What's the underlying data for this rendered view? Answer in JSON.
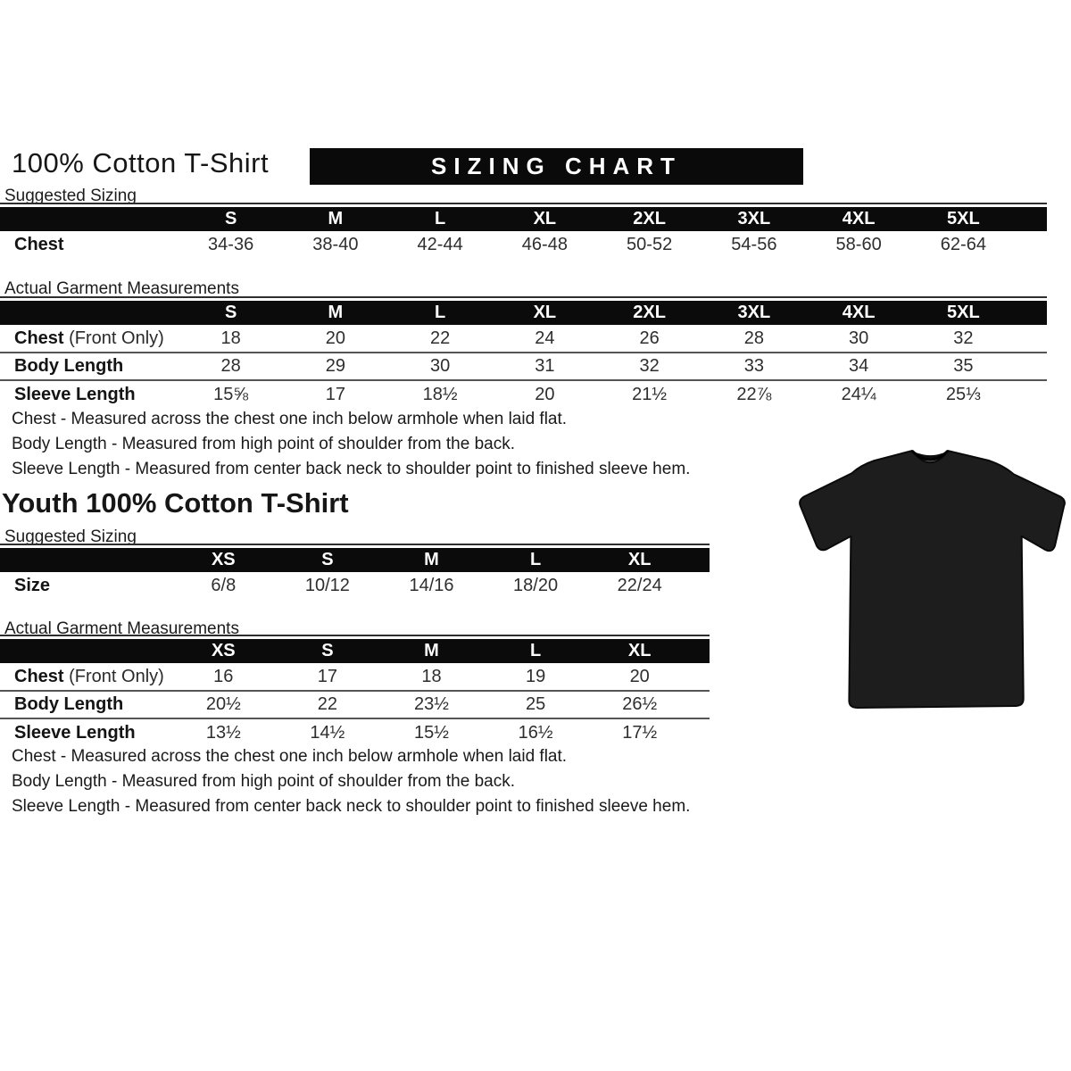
{
  "banner": "SIZING CHART",
  "adult": {
    "title": "100% Cotton T-Shirt",
    "suggested_label": "Suggested Sizing",
    "actual_label": "Actual Garment Measurements",
    "suggested_table": {
      "label_width": 200,
      "spacer": 35,
      "sizes": [
        "S",
        "M",
        "L",
        "XL",
        "2XL",
        "3XL",
        "4XL",
        "5XL"
      ],
      "rows": [
        {
          "label": "Chest",
          "label_suffix": "",
          "values": [
            "34-36",
            "38-40",
            "42-44",
            "46-48",
            "50-52",
            "54-56",
            "58-60",
            "62-64"
          ]
        }
      ]
    },
    "actual_table": {
      "label_width": 200,
      "spacer": 35,
      "sizes": [
        "S",
        "M",
        "L",
        "XL",
        "2XL",
        "3XL",
        "4XL",
        "5XL"
      ],
      "rows": [
        {
          "label": "Chest",
          "label_suffix": "(Front Only)",
          "values": [
            "18",
            "20",
            "22",
            "24",
            "26",
            "28",
            "30",
            "32"
          ]
        },
        {
          "label": "Body Length",
          "label_suffix": "",
          "values": [
            "28",
            "29",
            "30",
            "31",
            "32",
            "33",
            "34",
            "35"
          ]
        },
        {
          "label": "Sleeve Length",
          "label_suffix": "",
          "values": [
            "15⅝",
            "17",
            "18½",
            "20",
            "21½",
            "22⅞",
            "24¼",
            "25⅓"
          ]
        }
      ]
    },
    "notes": [
      "Chest - Measured across the chest one inch below armhole when laid flat.",
      "Body Length - Measured from high point of shoulder from the back.",
      "Sleeve Length - Measured from center back neck to shoulder point to finished sleeve hem."
    ]
  },
  "youth": {
    "title": "Youth 100% Cotton T-Shirt",
    "suggested_label": "Suggested Sizing",
    "actual_label": "Actual Garment Measurements",
    "suggested_table": {
      "label_width": 192,
      "spacer": 20,
      "sizes": [
        "XS",
        "S",
        "M",
        "L",
        "XL"
      ],
      "rows": [
        {
          "label": "Size",
          "label_suffix": "",
          "values": [
            "6/8",
            "10/12",
            "14/16",
            "18/20",
            "22/24"
          ]
        }
      ]
    },
    "actual_table": {
      "label_width": 192,
      "spacer": 20,
      "sizes": [
        "XS",
        "S",
        "M",
        "L",
        "XL"
      ],
      "rows": [
        {
          "label": "Chest",
          "label_suffix": "(Front Only)",
          "values": [
            "16",
            "17",
            "18",
            "19",
            "20"
          ]
        },
        {
          "label": "Body Length",
          "label_suffix": "",
          "values": [
            "20½",
            "22",
            "23½",
            "25",
            "26½"
          ]
        },
        {
          "label": "Sleeve Length",
          "label_suffix": "",
          "values": [
            "13½",
            "14½",
            "15½",
            "16½",
            "17½"
          ]
        }
      ]
    },
    "notes": [
      "Chest - Measured across the chest one inch below armhole when laid flat.",
      "Body Length - Measured from high point of shoulder from the back.",
      "Sleeve Length - Measured from center back neck to shoulder point to finished sleeve hem."
    ]
  },
  "tshirt": {
    "label": "black short-sleeve t-shirt",
    "color": "#1d1d1d"
  },
  "colors": {
    "header_bar": "#0b0b0b",
    "banner_bg": "#0a0a0a",
    "text": "#1f1f1f",
    "separator": "#555555"
  }
}
